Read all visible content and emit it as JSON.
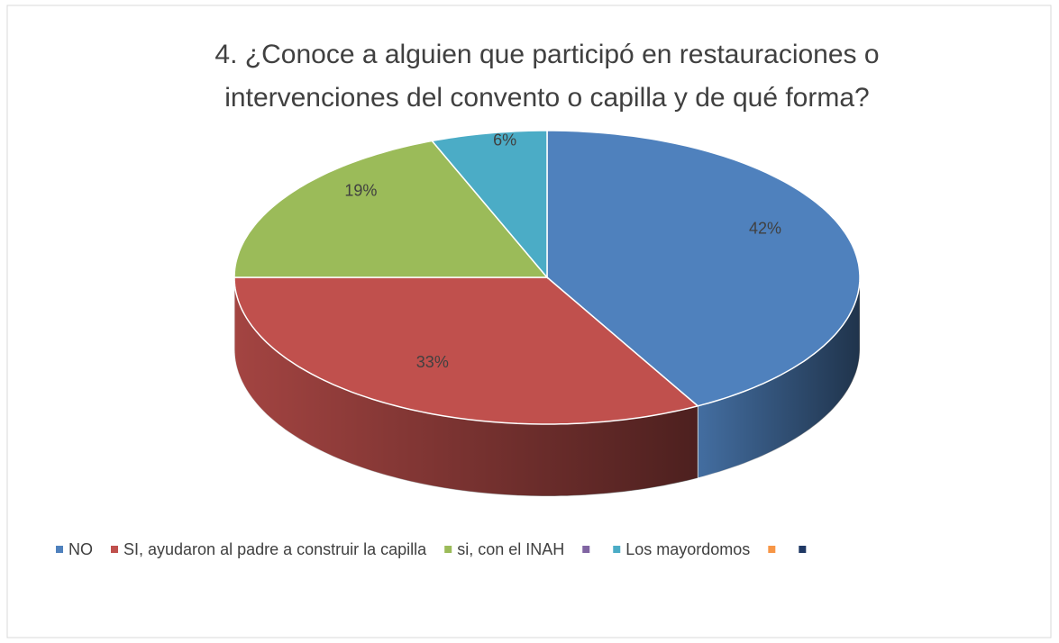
{
  "chart_data": {
    "type": "pie3d",
    "title": "4.   ¿Conoce a alguien que participó en restauraciones o intervenciones del convento o capilla y de qué forma?",
    "categories": [
      "NO",
      "SI, ayudaron al padre a construir la capilla",
      "si, con el INAH",
      null,
      "Los mayordomos",
      null,
      null
    ],
    "values": [
      42,
      33,
      19,
      0,
      6,
      0,
      0
    ],
    "colors": [
      "#4f81bd",
      "#c0504d",
      "#9bbb59",
      "#8064a2",
      "#4bacc6",
      "#f79646",
      "#1f3864"
    ],
    "legend": "bottom"
  }
}
